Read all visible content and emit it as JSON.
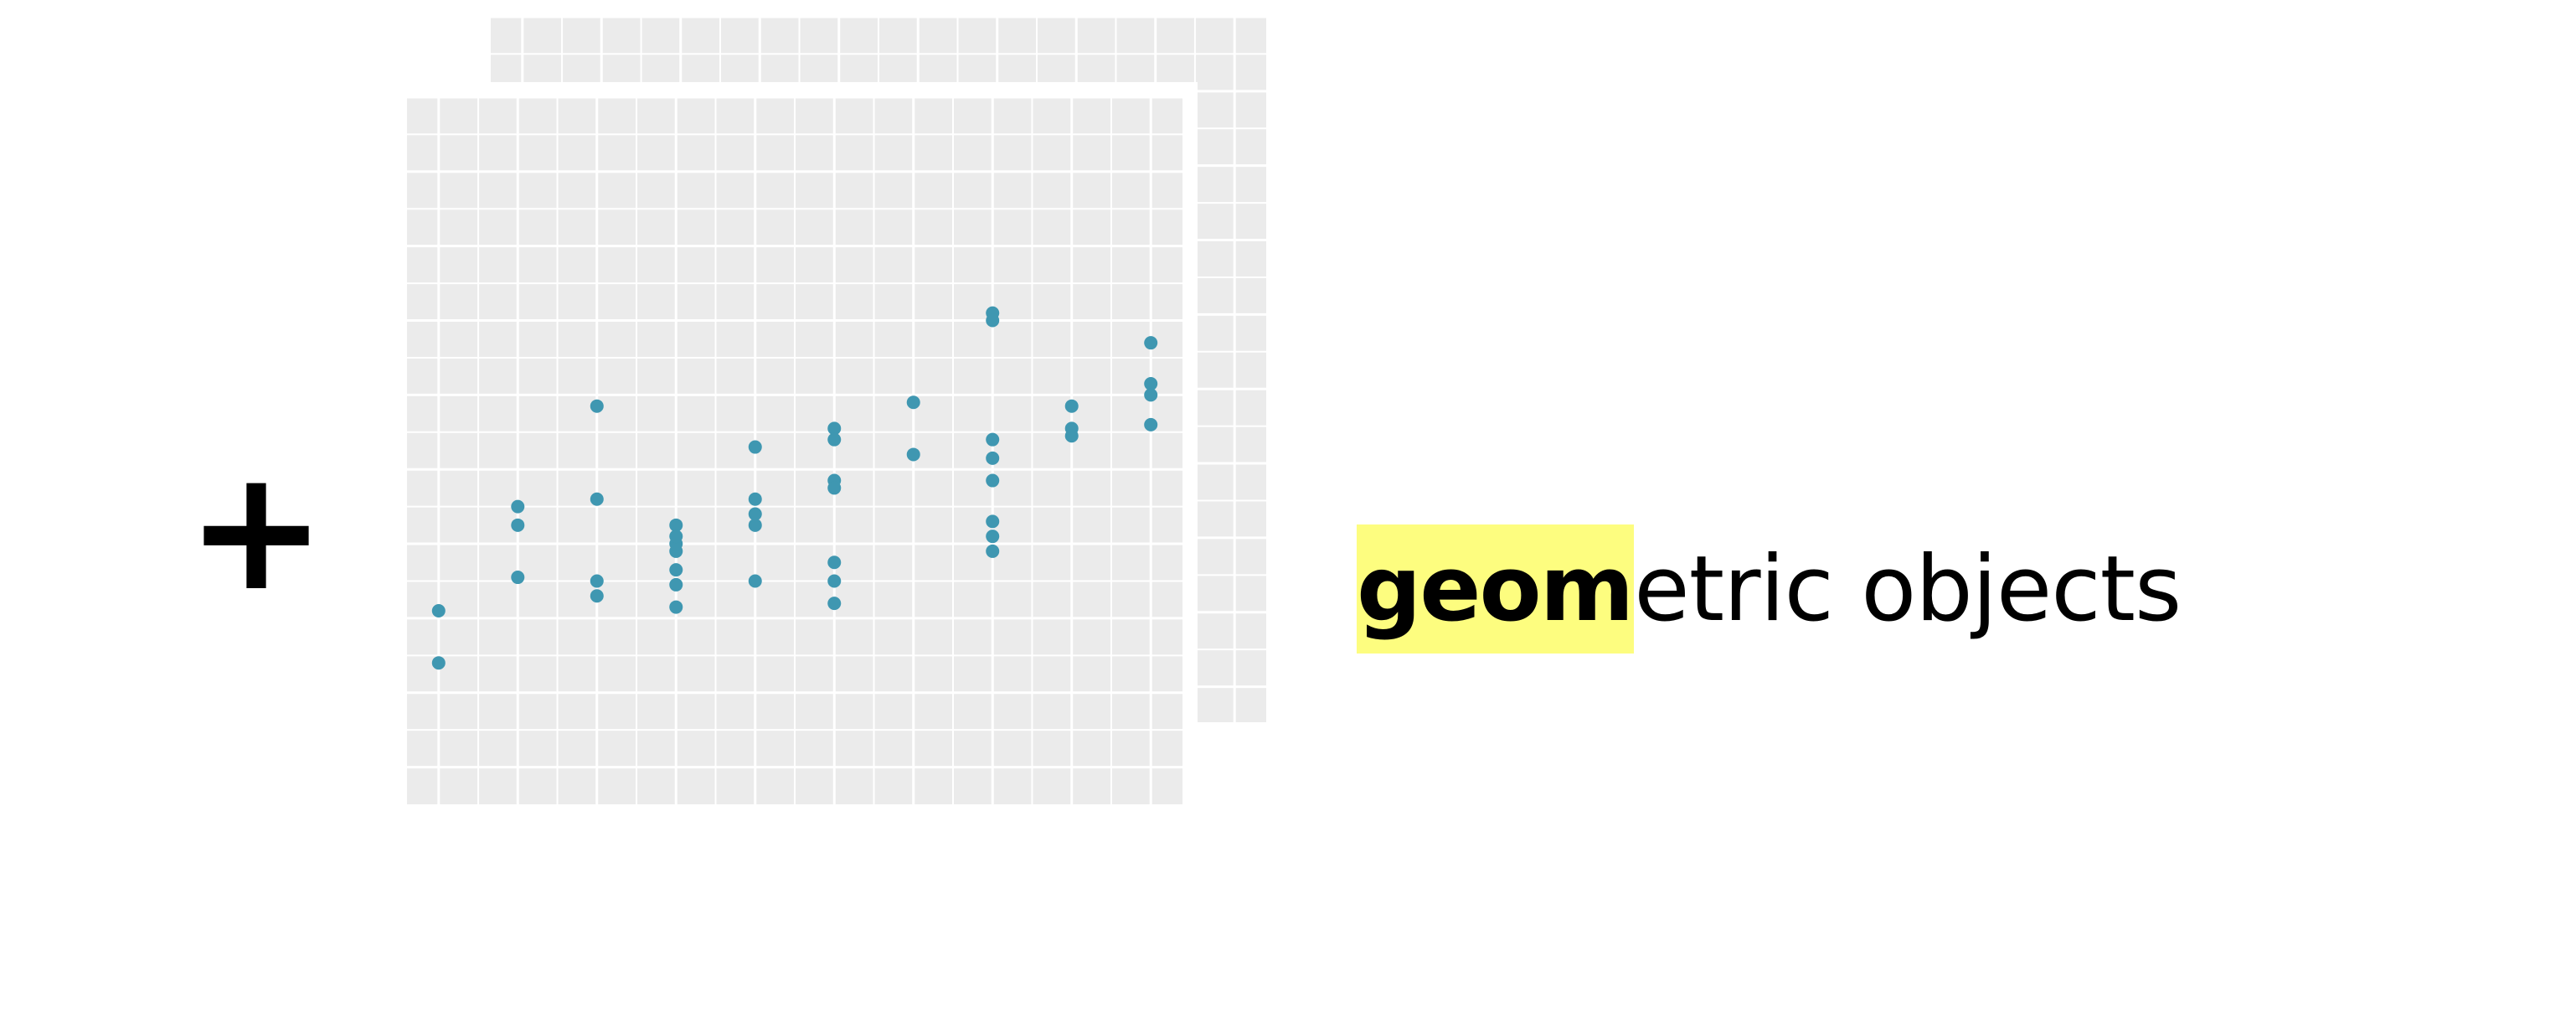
{
  "plus_symbol": "+",
  "label": {
    "highlighted_text": "geom",
    "rest_text": "etric objects",
    "highlight_color": "#fdfd7f"
  },
  "colors": {
    "panel_background": "#ebebeb",
    "grid_line": "#ffffff",
    "point": "#3f97b1"
  },
  "chart_data": {
    "type": "scatter",
    "title": "",
    "xlabel": "",
    "ylabel": "",
    "xlim": [
      0.6,
      10.4
    ],
    "ylim": [
      -1,
      18
    ],
    "grid": true,
    "points": [
      {
        "x": 1,
        "y": 4.2
      },
      {
        "x": 1,
        "y": 2.8
      },
      {
        "x": 2,
        "y": 7.0
      },
      {
        "x": 2,
        "y": 6.5
      },
      {
        "x": 2,
        "y": 5.1
      },
      {
        "x": 3,
        "y": 9.7
      },
      {
        "x": 3,
        "y": 7.2
      },
      {
        "x": 3,
        "y": 5.0
      },
      {
        "x": 3,
        "y": 4.6
      },
      {
        "x": 4,
        "y": 6.5
      },
      {
        "x": 4,
        "y": 5.8
      },
      {
        "x": 4,
        "y": 5.3
      },
      {
        "x": 4,
        "y": 4.9
      },
      {
        "x": 4,
        "y": 4.3
      },
      {
        "x": 4,
        "y": 6.0
      },
      {
        "x": 4,
        "y": 6.2
      },
      {
        "x": 5,
        "y": 8.6
      },
      {
        "x": 5,
        "y": 7.2
      },
      {
        "x": 5,
        "y": 6.8
      },
      {
        "x": 5,
        "y": 6.5
      },
      {
        "x": 5,
        "y": 5.0
      },
      {
        "x": 6,
        "y": 9.1
      },
      {
        "x": 6,
        "y": 8.8
      },
      {
        "x": 6,
        "y": 7.7
      },
      {
        "x": 6,
        "y": 7.5
      },
      {
        "x": 6,
        "y": 5.5
      },
      {
        "x": 6,
        "y": 5.0
      },
      {
        "x": 6,
        "y": 4.4
      },
      {
        "x": 7,
        "y": 9.8
      },
      {
        "x": 7,
        "y": 8.4
      },
      {
        "x": 8,
        "y": 12.2
      },
      {
        "x": 8,
        "y": 12.0
      },
      {
        "x": 8,
        "y": 8.8
      },
      {
        "x": 8,
        "y": 8.3
      },
      {
        "x": 8,
        "y": 7.7
      },
      {
        "x": 8,
        "y": 6.6
      },
      {
        "x": 8,
        "y": 6.2
      },
      {
        "x": 8,
        "y": 5.8
      },
      {
        "x": 9,
        "y": 9.7
      },
      {
        "x": 9,
        "y": 9.1
      },
      {
        "x": 9,
        "y": 8.9
      },
      {
        "x": 10,
        "y": 11.4
      },
      {
        "x": 10,
        "y": 10.3
      },
      {
        "x": 10,
        "y": 10.0
      },
      {
        "x": 10,
        "y": 9.2
      }
    ]
  }
}
